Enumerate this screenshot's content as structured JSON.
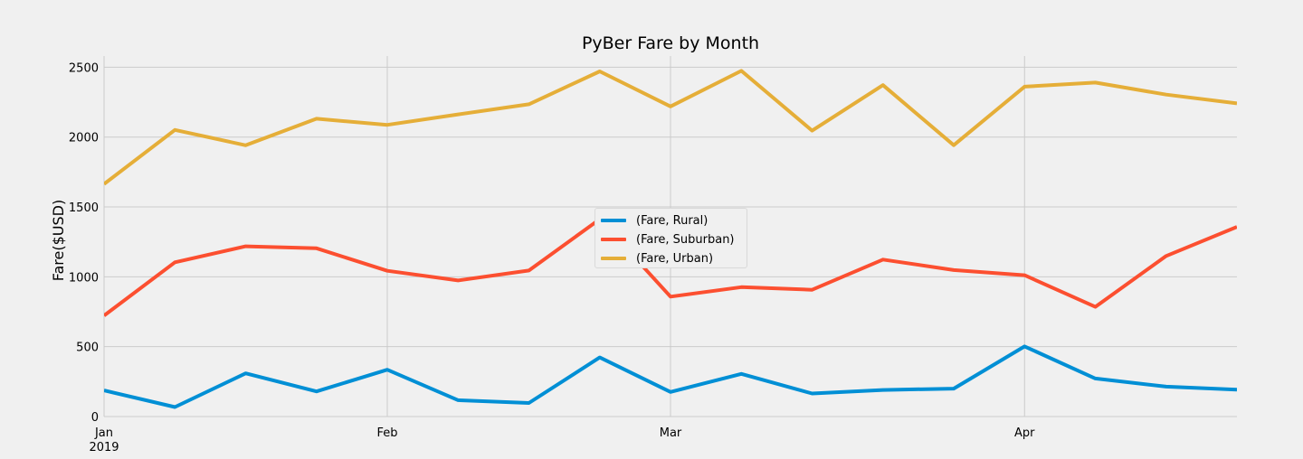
{
  "chart_data": {
    "type": "line",
    "title": "PyBer Fare by Month",
    "xlabel": "",
    "ylabel": "Fare($USD)",
    "ylim": [
      0,
      2580
    ],
    "yticks": [
      0,
      500,
      1000,
      1500,
      2000,
      2500
    ],
    "x": [
      "2019-01-06",
      "2019-01-13",
      "2019-01-20",
      "2019-01-27",
      "2019-02-03",
      "2019-02-10",
      "2019-02-17",
      "2019-02-24",
      "2019-03-03",
      "2019-03-10",
      "2019-03-17",
      "2019-03-24",
      "2019-03-31",
      "2019-04-07",
      "2019-04-14",
      "2019-04-21",
      "2019-04-28"
    ],
    "xlim": [
      "2019-01-06",
      "2019-04-28"
    ],
    "xticks": [
      {
        "date": "2019-01-06",
        "label": "Jan",
        "sublabel": "2019"
      },
      {
        "date": "2019-02-03",
        "label": "Feb",
        "sublabel": ""
      },
      {
        "date": "2019-03-03",
        "label": "Mar",
        "sublabel": ""
      },
      {
        "date": "2019-04-07",
        "label": "Apr",
        "sublabel": ""
      }
    ],
    "grid": true,
    "legend_position": "center",
    "series": [
      {
        "name": "(Fare, Rural)",
        "color": "#008fd5",
        "values": [
          187,
          68,
          309,
          180,
          335,
          117,
          97,
          423,
          176,
          305,
          165,
          190,
          200,
          502,
          272,
          214,
          192
        ]
      },
      {
        "name": "(Fare, Suburban)",
        "color": "#fc4f30",
        "values": [
          722,
          1104,
          1218,
          1204,
          1043,
          974,
          1045,
          1412,
          858,
          926,
          907,
          1123,
          1048,
          1011,
          785,
          1149,
          1357
        ]
      },
      {
        "name": "(Fare, Urban)",
        "color": "#e5ae38",
        "values": [
          1664,
          2051,
          1941,
          2131,
          2087,
          2162,
          2235,
          2470,
          2219,
          2474,
          2046,
          2372,
          1942,
          2361,
          2390,
          2304,
          2241
        ]
      }
    ]
  }
}
